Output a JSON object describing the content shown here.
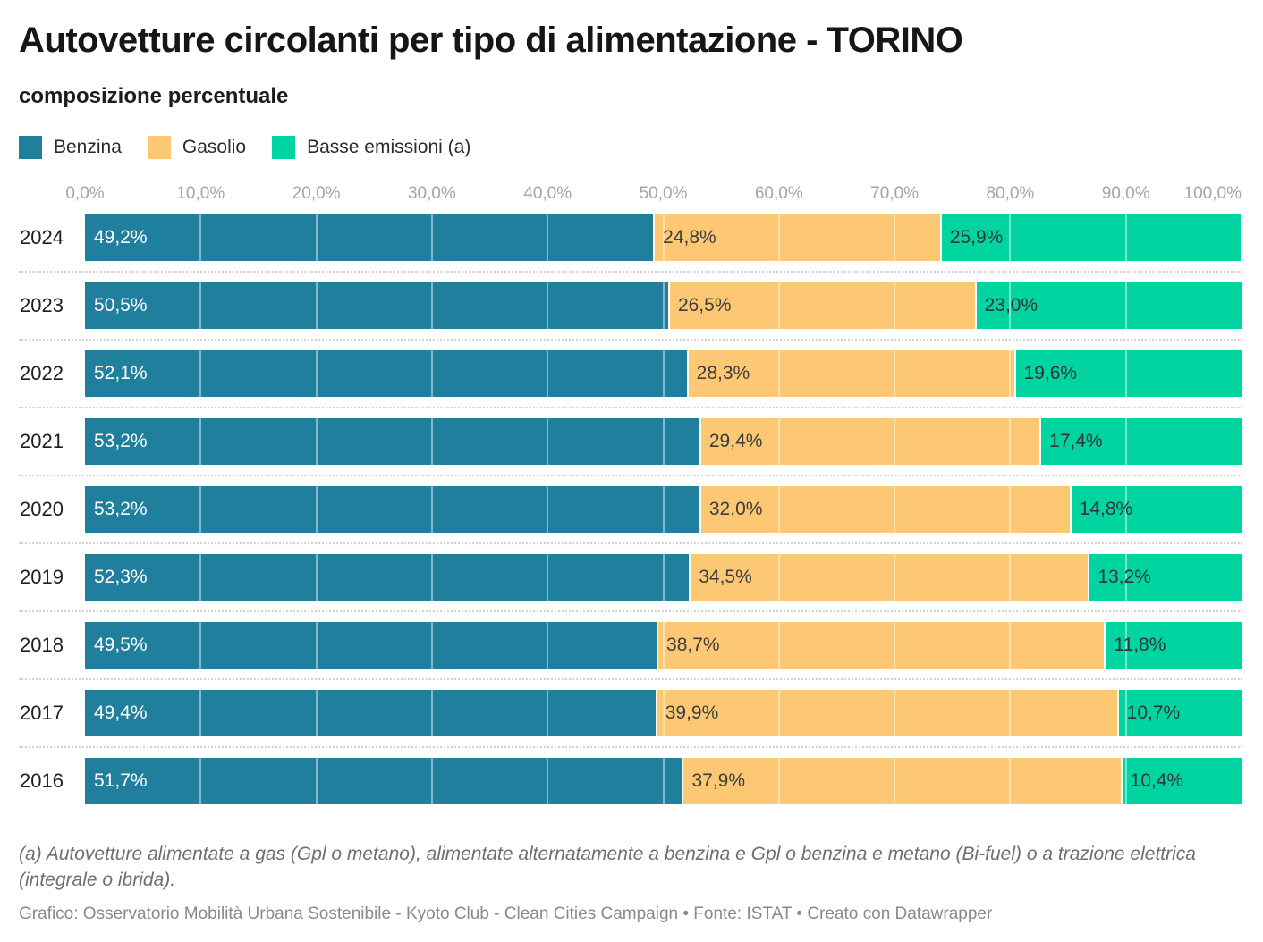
{
  "header": {
    "title": "Autovetture circolanti per tipo di alimentazione - TORINO",
    "subtitle": "composizione percentuale"
  },
  "footer": {
    "footnote": "(a) Autovetture alimentate a gas (Gpl o metano), alimentate alternatamente a benzina e Gpl o benzina e metano (Bi-fuel) o a trazione elettrica (integrale o ibrida).",
    "credits": "Grafico: Osservatorio Mobilità Urbana Sostenibile - Kyoto Club - Clean Cities Campaign • Fonte: ISTAT • Creato con Datawrapper"
  },
  "colors": {
    "benzina": "#1f7f9c",
    "gasolio": "#fcc873",
    "basse_emissioni": "#00d5a2",
    "label_on_benzina": "#ffffff",
    "label_on_gasolio": "#3d3d3d",
    "label_on_basse": "#333333",
    "axis_text": "#a5a5a5",
    "separator": "#d2d2d2"
  },
  "chart_data": {
    "type": "bar",
    "stacked": true,
    "orientation": "horizontal",
    "title": "Autovetture circolanti per tipo di alimentazione - TORINO",
    "subtitle": "composizione percentuale",
    "categories": [
      "2024",
      "2023",
      "2022",
      "2021",
      "2020",
      "2019",
      "2018",
      "2017",
      "2016"
    ],
    "series": [
      {
        "name": "Benzina",
        "color": "#1f7f9c",
        "label_color": "#ffffff",
        "values": [
          49.2,
          50.5,
          52.1,
          53.2,
          53.2,
          52.3,
          49.5,
          49.4,
          51.7
        ],
        "labels": [
          "49,2%",
          "50,5%",
          "52,1%",
          "53,2%",
          "53,2%",
          "52,3%",
          "49,5%",
          "49,4%",
          "51,7%"
        ]
      },
      {
        "name": "Gasolio",
        "color": "#fcc873",
        "label_color": "#3d3d3d",
        "values": [
          24.8,
          26.5,
          28.3,
          29.4,
          32.0,
          34.5,
          38.7,
          39.9,
          37.9
        ],
        "labels": [
          "24,8%",
          "26,5%",
          "28,3%",
          "29,4%",
          "32,0%",
          "34,5%",
          "38,7%",
          "39,9%",
          "37,9%"
        ]
      },
      {
        "name": "Basse emissioni (a)",
        "color": "#00d5a2",
        "label_color": "#333333",
        "values": [
          25.9,
          23.0,
          19.6,
          17.4,
          14.8,
          13.2,
          11.8,
          10.7,
          10.4
        ],
        "labels": [
          "25,9%",
          "23,0%",
          "19,6%",
          "17,4%",
          "14,8%",
          "13,2%",
          "11,8%",
          "10,7%",
          "10,4%"
        ]
      }
    ],
    "x_axis": {
      "min": 0,
      "max": 100,
      "tick_step": 10,
      "tick_labels": [
        "0,0%",
        "10,0%",
        "20,0%",
        "30,0%",
        "40,0%",
        "50,0%",
        "60,0%",
        "70,0%",
        "80,0%",
        "90,0%",
        "100,0%"
      ]
    },
    "grid": true,
    "legend_position": "top",
    "legend": [
      "Benzina",
      "Gasolio",
      "Basse emissioni (a)"
    ]
  }
}
